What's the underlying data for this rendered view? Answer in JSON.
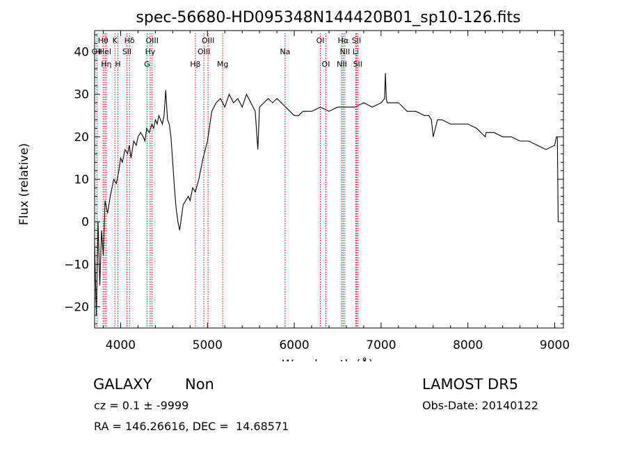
{
  "chart_data": {
    "type": "line",
    "title": "spec-56680-HD095348N144420B01_sp10-126.fits",
    "xlabel": "Wavelength (Å)",
    "ylabel": "Flux (relative)",
    "xlim": [
      3700,
      9100
    ],
    "ylim": [
      -25,
      45
    ],
    "xticks": [
      4000,
      5000,
      6000,
      7000,
      8000,
      9000
    ],
    "yticks": [
      -20,
      -10,
      0,
      10,
      20,
      30,
      40
    ],
    "grid": false,
    "line_color": "#000000",
    "marker_color": "#cc0000",
    "series": [
      {
        "x": [
          3700,
          3720,
          3740,
          3760,
          3780,
          3800,
          3820,
          3850,
          3880,
          3900,
          3920,
          3950,
          3980,
          4000,
          4020,
          4050,
          4080,
          4100,
          4120,
          4150,
          4180,
          4200,
          4230,
          4260,
          4280,
          4300,
          4330,
          4360,
          4380,
          4400,
          4420,
          4440,
          4460,
          4480,
          4500,
          4520,
          4540,
          4560,
          4580,
          4600,
          4620,
          4640,
          4660,
          4680,
          4700,
          4720,
          4750,
          4780,
          4800,
          4830,
          4860,
          4900,
          4950,
          5000,
          5050,
          5100,
          5150,
          5200,
          5250,
          5300,
          5350,
          5400,
          5450,
          5500,
          5550,
          5580,
          5600,
          5650,
          5700,
          5750,
          5800,
          5850,
          5900,
          5950,
          6000,
          6050,
          6100,
          6200,
          6300,
          6400,
          6500,
          6600,
          6700,
          6800,
          6900,
          7000,
          7040,
          7050,
          7060,
          7070,
          7100,
          7200,
          7300,
          7400,
          7500,
          7550,
          7580,
          7600,
          7650,
          7700,
          7800,
          7900,
          8000,
          8100,
          8200,
          8210,
          8300,
          8400,
          8500,
          8600,
          8700,
          8800,
          8900,
          9000,
          9020,
          9030,
          9040
        ],
        "y": [
          -5,
          -22,
          0,
          -15,
          -2,
          -8,
          5,
          2,
          6,
          8,
          10,
          9,
          12,
          15,
          14,
          17,
          16,
          18,
          15,
          19,
          18,
          20,
          21,
          20,
          19,
          22,
          21,
          23,
          22,
          24,
          23,
          25,
          24,
          23,
          25,
          31,
          24,
          23,
          20,
          14,
          8,
          3,
          0,
          -2,
          1,
          4,
          5,
          6,
          5,
          8,
          7,
          10,
          15,
          19,
          26,
          28,
          29,
          27,
          30,
          28,
          29,
          27,
          30,
          28,
          26,
          17,
          27,
          28,
          29,
          28,
          29,
          28,
          27,
          26,
          25,
          25,
          26,
          26,
          27,
          26,
          27,
          27,
          27,
          28,
          27,
          28,
          29,
          35,
          29,
          28,
          28,
          28,
          26,
          26,
          25,
          25,
          24,
          20,
          24,
          24,
          23,
          23,
          23,
          22,
          20,
          21,
          21,
          20,
          20,
          19,
          19,
          18,
          17,
          18,
          20,
          20,
          0
        ]
      }
    ],
    "line_markers": [
      {
        "x": 3727,
        "label": "OII",
        "row": 2
      },
      {
        "x": 3798,
        "label": "Hθ",
        "row": 1
      },
      {
        "x": 3820,
        "label": "HeI",
        "row": 2
      },
      {
        "x": 3835,
        "label": "Hη",
        "row": 3
      },
      {
        "x": 3934,
        "label": "K",
        "row": 1
      },
      {
        "x": 3969,
        "label": "H",
        "row": 3
      },
      {
        "x": 4072,
        "label": "SII",
        "row": 2
      },
      {
        "x": 4102,
        "label": "Hδ",
        "row": 1
      },
      {
        "x": 4304,
        "label": "G",
        "row": 3
      },
      {
        "x": 4340,
        "label": "Hγ",
        "row": 2
      },
      {
        "x": 4363,
        "label": "OIII",
        "row": 1
      },
      {
        "x": 4861,
        "label": "Hβ",
        "row": 3
      },
      {
        "x": 4959,
        "label": "OIII",
        "row": 2
      },
      {
        "x": 5007,
        "label": "OIII",
        "row": 1
      },
      {
        "x": 5175,
        "label": "Mg",
        "row": 3
      },
      {
        "x": 5894,
        "label": "Na",
        "row": 2
      },
      {
        "x": 6300,
        "label": "OI",
        "row": 1
      },
      {
        "x": 6364,
        "label": "OI",
        "row": 3
      },
      {
        "x": 6548,
        "label": "NII",
        "row": 3
      },
      {
        "x": 6563,
        "label": "Hα",
        "row": 1
      },
      {
        "x": 6583,
        "label": "NII",
        "row": 2
      },
      {
        "x": 6708,
        "label": "Li",
        "row": 2
      },
      {
        "x": 6716,
        "label": "SII",
        "row": 1
      },
      {
        "x": 6731,
        "label": "SII",
        "row": 3
      }
    ]
  },
  "info": {
    "class": "GALAXY",
    "subclass": "Non",
    "survey": "LAMOST DR5",
    "cz": "cz = 0.1 ± -9999",
    "obs_date": "Obs-Date: 20140122",
    "coords": "RA = 146.26616, DEC =  14.68571"
  }
}
